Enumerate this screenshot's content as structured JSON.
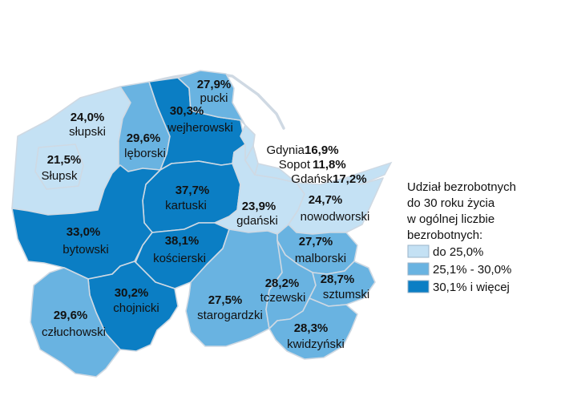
{
  "colors": {
    "low": "#c4e1f4",
    "mid": "#69b3e1",
    "high": "#0b7ec4",
    "border": "#cfd9e3"
  },
  "regions": [
    {
      "id": "pucki",
      "name": "pucki",
      "value": "27,9%",
      "class": "mid"
    },
    {
      "id": "wejherowski",
      "name": "wejherowski",
      "value": "30,3%",
      "class": "high"
    },
    {
      "id": "slupski",
      "name": "słupski",
      "value": "24,0%",
      "class": "low"
    },
    {
      "id": "leborski",
      "name": "lęborski",
      "value": "29,6%",
      "class": "mid"
    },
    {
      "id": "slupsk",
      "name": "Słupsk",
      "value": "21,5%",
      "class": "low"
    },
    {
      "id": "kartuski",
      "name": "kartuski",
      "value": "37,7%",
      "class": "high"
    },
    {
      "id": "bytowski",
      "name": "bytowski",
      "value": "33,0%",
      "class": "high"
    },
    {
      "id": "gdanski",
      "name": "gdański",
      "value": "23,9%",
      "class": "low"
    },
    {
      "id": "nowodworski",
      "name": "nowodworski",
      "value": "24,7%",
      "class": "low"
    },
    {
      "id": "koscierski",
      "name": "kościerski",
      "value": "38,1%",
      "class": "high"
    },
    {
      "id": "malborski",
      "name": "malborski",
      "value": "27,7%",
      "class": "mid"
    },
    {
      "id": "chojnicki",
      "name": "chojnicki",
      "value": "30,2%",
      "class": "high"
    },
    {
      "id": "czluchowski",
      "name": "człuchowski",
      "value": "29,6%",
      "class": "mid"
    },
    {
      "id": "starogardzki",
      "name": "starogardzki",
      "value": "27,5%",
      "class": "mid"
    },
    {
      "id": "tczewski",
      "name": "tczewski",
      "value": "28,2%",
      "class": "mid"
    },
    {
      "id": "sztumski",
      "name": "sztumski",
      "value": "28,7%",
      "class": "mid"
    },
    {
      "id": "kwidzynski",
      "name": "kwidzyński",
      "value": "28,3%",
      "class": "mid"
    }
  ],
  "cities": [
    {
      "id": "gdynia",
      "name": "Gdynia",
      "value": "16,9%"
    },
    {
      "id": "sopot",
      "name": "Sopot",
      "value": "11,8%"
    },
    {
      "id": "gdansk",
      "name": "Gdańsk",
      "value": "17,2%"
    }
  ],
  "legend": {
    "title_lines": [
      "Udział bezrobotnych",
      "do 30 roku życia",
      "w ogólnej liczbie",
      "bezrobotnych:"
    ],
    "items": [
      {
        "label": "do 25,0%",
        "class": "low"
      },
      {
        "label": "25,1% - 30,0%",
        "class": "mid"
      },
      {
        "label": "30,1% i więcej",
        "class": "high"
      }
    ]
  }
}
